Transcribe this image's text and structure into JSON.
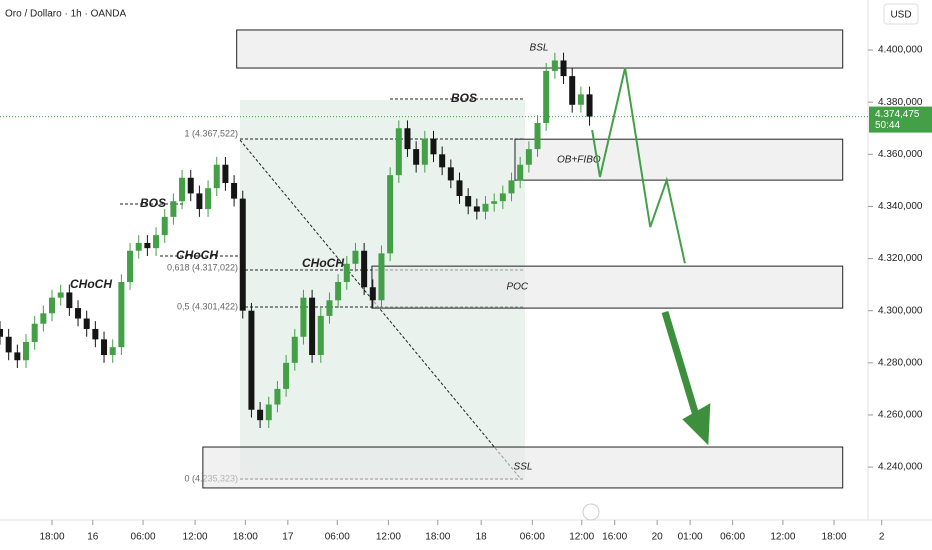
{
  "chart_data": {
    "type": "candlestick",
    "title": "Oro / Dollaro · 1h · OANDA",
    "currency": "USD",
    "ylim": [
      4219.7,
      4419.2
    ],
    "yticks": [
      {
        "value": 4240,
        "label": "4.240,000"
      },
      {
        "value": 4260,
        "label": "4.260,000"
      },
      {
        "value": 4280,
        "label": "4.280,000"
      },
      {
        "value": 4300,
        "label": "4.300,000"
      },
      {
        "value": 4320,
        "label": "4.320,000"
      },
      {
        "value": 4340,
        "label": "4.340,000"
      },
      {
        "value": 4360,
        "label": "4.360,000"
      },
      {
        "value": 4380,
        "label": "4.380,000"
      },
      {
        "value": 4400,
        "label": "4.400,000"
      }
    ],
    "xlim": [
      -6,
      101.5
    ],
    "xticks": [
      {
        "value": 0,
        "label": "18:00"
      },
      {
        "value": 4.7,
        "label": "16"
      },
      {
        "value": 10.5,
        "label": "06:00"
      },
      {
        "value": 16.5,
        "label": "12:00"
      },
      {
        "value": 22.3,
        "label": "18:00"
      },
      {
        "value": 27.2,
        "label": "17"
      },
      {
        "value": 32.9,
        "label": "06:00"
      },
      {
        "value": 38.8,
        "label": "12:00"
      },
      {
        "value": 44.5,
        "label": "18:00"
      },
      {
        "value": 49.5,
        "label": "18"
      },
      {
        "value": 55.4,
        "label": "06:00"
      },
      {
        "value": 61.1,
        "label": "12:00"
      },
      {
        "value": 64.9,
        "label": "16:00"
      },
      {
        "value": 69.8,
        "label": "20"
      },
      {
        "value": 73.6,
        "label": "01:00"
      },
      {
        "value": 78.5,
        "label": "06:00"
      },
      {
        "value": 84.3,
        "label": "12:00"
      },
      {
        "value": 90.2,
        "label": "18:00"
      },
      {
        "value": 95.7,
        "label": "2"
      }
    ],
    "up_color": "#43a047",
    "down_color": "#151515",
    "x": [
      -6,
      -5,
      -4,
      -3,
      -2,
      -1,
      0,
      1,
      2,
      3,
      4,
      5,
      6,
      7,
      8,
      9,
      10,
      11,
      12,
      13,
      14,
      15,
      16,
      17,
      18,
      19,
      20,
      21,
      22,
      23,
      24,
      25,
      26,
      27,
      28,
      29,
      30,
      31,
      32,
      33,
      34,
      35,
      36,
      37,
      38,
      39,
      40,
      41,
      42,
      43,
      44,
      45,
      46,
      47,
      48,
      49,
      50,
      51,
      52,
      53,
      54,
      55,
      56,
      57,
      58,
      59,
      60,
      61,
      62
    ],
    "open": [
      4293,
      4290,
      4284,
      4281,
      4288,
      4295,
      4299,
      4305,
      4307,
      4301,
      4297,
      4293,
      4289,
      4283,
      4286,
      4311,
      4323,
      4326,
      4324,
      4329,
      4336,
      4342,
      4351,
      4345,
      4339,
      4347,
      4356,
      4349,
      4343,
      4300,
      4262,
      4258,
      4264,
      4270,
      4280,
      4290,
      4305,
      4283,
      4298,
      4304,
      4311,
      4318,
      4323,
      4309,
      4304,
      4322,
      4352,
      4370,
      4362,
      4356,
      4366,
      4360,
      4355,
      4350,
      4344,
      4340,
      4338,
      4341,
      4342,
      4345,
      4350,
      4356,
      4362,
      4372,
      4392,
      4396,
      4390,
      4379,
      4383
    ],
    "high": [
      4296,
      4293,
      4287,
      4291,
      4298,
      4302,
      4308,
      4310,
      4310,
      4304,
      4300,
      4296,
      4292,
      4289,
      4314,
      4326,
      4329,
      4329,
      4332,
      4339,
      4345,
      4354,
      4354,
      4348,
      4350,
      4359,
      4359,
      4352,
      4346,
      4303,
      4265,
      4267,
      4273,
      4283,
      4293,
      4308,
      4308,
      4301,
      4307,
      4314,
      4321,
      4326,
      4326,
      4312,
      4325,
      4355,
      4373,
      4373,
      4365,
      4369,
      4369,
      4363,
      4358,
      4353,
      4347,
      4343,
      4344,
      4345,
      4348,
      4353,
      4359,
      4365,
      4375,
      4395,
      4399,
      4399,
      4393,
      4386,
      4386
    ],
    "low": [
      4287,
      4281,
      4278,
      4278,
      4285,
      4292,
      4296,
      4302,
      4298,
      4294,
      4290,
      4286,
      4280,
      4280,
      4283,
      4308,
      4320,
      4321,
      4321,
      4326,
      4333,
      4339,
      4342,
      4336,
      4336,
      4344,
      4346,
      4340,
      4297,
      4259,
      4255,
      4255,
      4261,
      4267,
      4277,
      4287,
      4280,
      4280,
      4295,
      4301,
      4308,
      4315,
      4306,
      4301,
      4301,
      4319,
      4349,
      4359,
      4353,
      4353,
      4357,
      4352,
      4347,
      4341,
      4337,
      4335,
      4335,
      4338,
      4339,
      4342,
      4347,
      4353,
      4359,
      4369,
      4389,
      4387,
      4376,
      4376,
      4371
    ],
    "close": [
      4290,
      4284,
      4281,
      4288,
      4295,
      4299,
      4305,
      4307,
      4301,
      4297,
      4293,
      4289,
      4283,
      4286,
      4311,
      4323,
      4326,
      4324,
      4329,
      4336,
      4342,
      4351,
      4345,
      4339,
      4347,
      4356,
      4349,
      4343,
      4300,
      4262,
      4258,
      4264,
      4270,
      4280,
      4290,
      4305,
      4283,
      4298,
      4304,
      4311,
      4318,
      4323,
      4309,
      4304,
      4322,
      4352,
      4370,
      4362,
      4356,
      4366,
      4360,
      4355,
      4350,
      4344,
      4340,
      4338,
      4341,
      4342,
      4345,
      4350,
      4356,
      4362,
      4372,
      4392,
      4396,
      4390,
      4379,
      4383,
      4374.475
    ],
    "last_price": {
      "value": 4374.475,
      "label": "4.374,475"
    },
    "countdown": "50:44",
    "zones": [
      {
        "label": "BSL",
        "x": [
          21.3,
          91.2
        ],
        "y": [
          4407.7,
          4393.1
        ]
      },
      {
        "label": "OB+FIBO",
        "x": [
          53.4,
          91.2
        ],
        "y": [
          4365.8,
          4350.1
        ]
      },
      {
        "label": "POC",
        "x": [
          36.9,
          91.2
        ],
        "y": [
          4317.1,
          4301.0
        ]
      },
      {
        "label": "SSL",
        "x": [
          17.4,
          91.2
        ],
        "y": [
          4247.7,
          4232.0
        ]
      }
    ],
    "projection": {
      "color": "#43a047",
      "x": [
        62.3,
        63.2,
        66.1,
        69.0,
        70.9,
        73.0
      ],
      "y": [
        4369.3,
        4351.3,
        4393.1,
        4332.1,
        4350.1,
        4318.2
      ]
    },
    "arrow": {
      "color": "#3d8f3d",
      "x": [
        70.7,
        75.7
      ],
      "y": [
        4299.5,
        4248.4
      ]
    },
    "annotations": [
      "BOS",
      "BOS",
      "CHoCH",
      "CHoCH",
      "CHoCH"
    ],
    "fib_labels": [
      "1 (4.367,522)",
      "0,618 (4.317,022)",
      "0,5 (4.301,422)",
      "0 (4.235,323)"
    ]
  }
}
